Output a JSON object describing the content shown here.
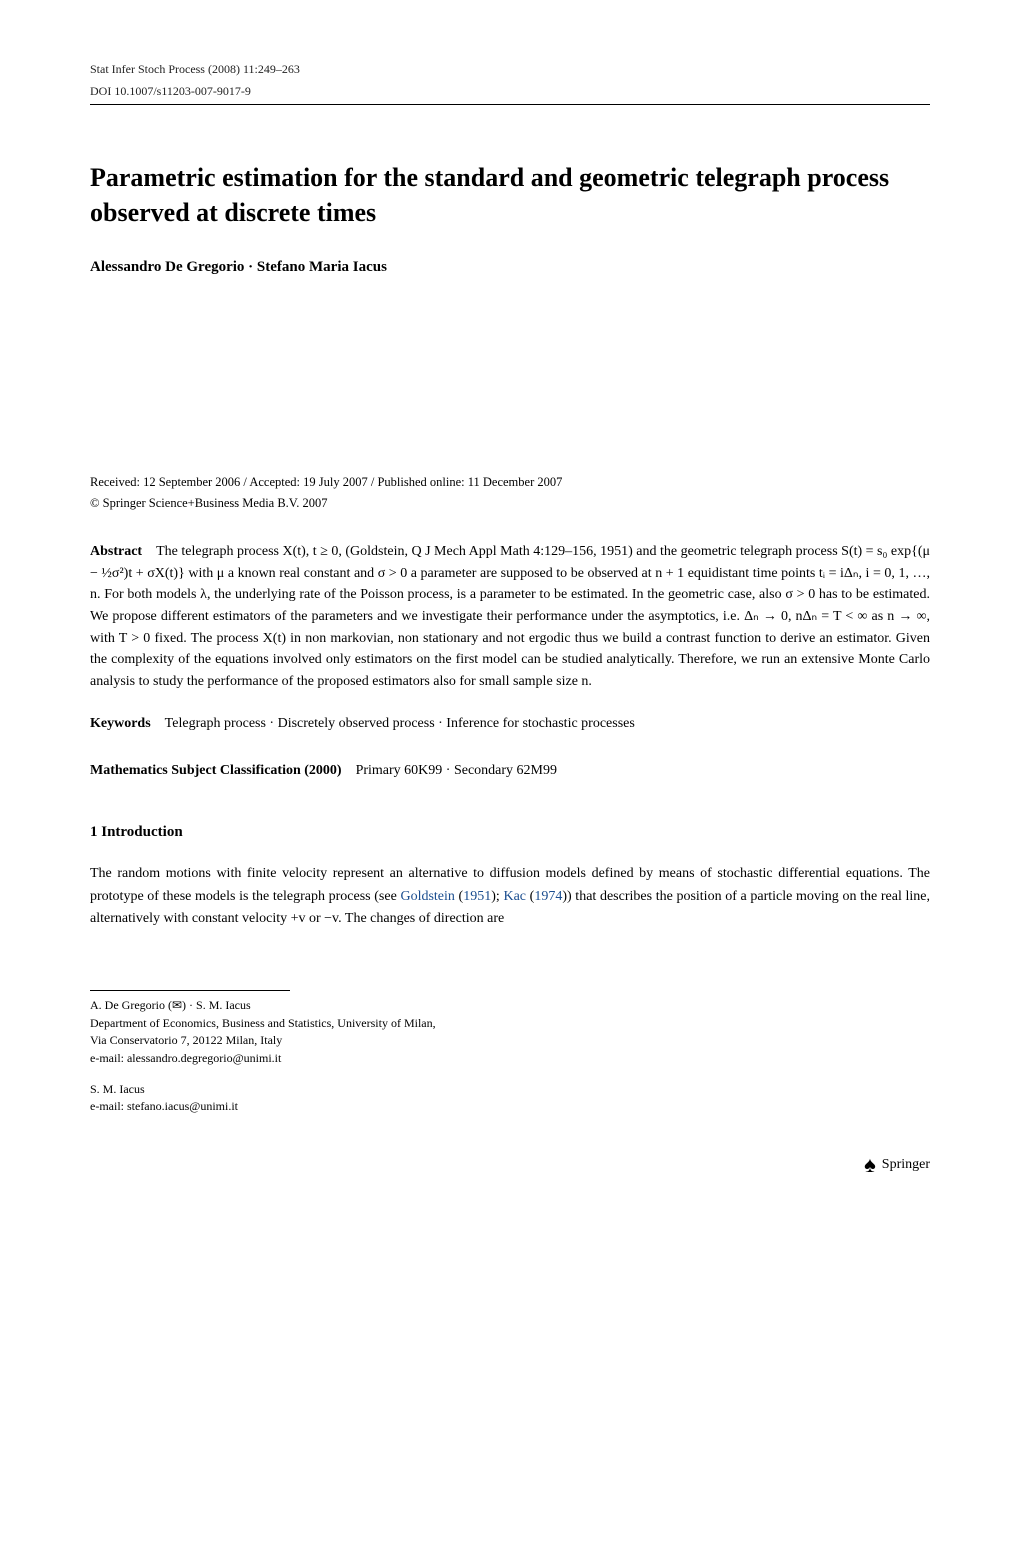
{
  "header": {
    "left": "Stat Infer Stoch Process (2008) 11:249–263",
    "doi": "DOI 10.1007/s11203-007-9017-9"
  },
  "title": "Parametric estimation for the standard and geometric telegraph process observed at discrete times",
  "authors": "Alessandro De Gregorio · Stefano Maria Iacus",
  "received": "Received: 12 September 2006 / Accepted: 19 July 2007 / Published online: 11 December 2007",
  "copyright": "© Springer Science+Business Media B.V. 2007",
  "abstract": {
    "label": "Abstract",
    "text": "The telegraph process X(t), t ≥ 0, (Goldstein, Q J Mech Appl Math 4:129–156, 1951) and the geometric telegraph process S(t) = s₀ exp{(μ − ½σ²)t + σX(t)} with μ a known real constant and σ > 0 a parameter are supposed to be observed at n + 1 equidistant time points tᵢ = iΔₙ, i = 0, 1, …, n. For both models λ, the underlying rate of the Poisson process, is a parameter to be estimated. In the geometric case, also σ > 0 has to be estimated. We propose different estimators of the parameters and we investigate their performance under the asymptotics, i.e. Δₙ → 0, nΔₙ = T < ∞ as n → ∞, with T > 0 fixed. The process X(t) in non markovian, non stationary and not ergodic thus we build a contrast function to derive an estimator. Given the complexity of the equations involved only estimators on the first model can be studied analytically. Therefore, we run an extensive Monte Carlo analysis to study the performance of the proposed estimators also for small sample size n."
  },
  "keywords": {
    "label": "Keywords",
    "text": "Telegraph process · Discretely observed process · Inference for stochastic processes"
  },
  "msc": {
    "label": "Mathematics Subject Classification (2000)",
    "text": "Primary 60K99 · Secondary 62M99"
  },
  "section1": {
    "title": "1 Introduction",
    "para1_part1": "The random motions with finite velocity represent an alternative to diffusion models defined by means of stochastic differential equations. The prototype of these models is the telegraph process (see ",
    "ref1": "Goldstein",
    "ref1_paren_before": " (",
    "ref1_year": "1951",
    "ref1_paren_after": "); ",
    "ref2": "Kac",
    "ref2_paren_before": " (",
    "ref2_year": "1974",
    "ref2_paren_after": ")) that describes the position of a particle moving on the real line, alternatively with constant velocity +v or −v. The changes of direction are"
  },
  "affiliation": {
    "line1": "A. De Gregorio (✉) · S. M. Iacus",
    "line2": "Department of Economics, Business and Statistics, University of Milan,",
    "line3": "Via Conservatorio 7, 20122 Milan,  Italy",
    "line4": "e-mail: alessandro.degregorio@unimi.it",
    "author2": "S. M. Iacus",
    "email2": "e-mail: stefano.iacus@unimi.it"
  },
  "footer": {
    "publisher": "Springer"
  },
  "colors": {
    "link_color": "#1a4d8f"
  }
}
